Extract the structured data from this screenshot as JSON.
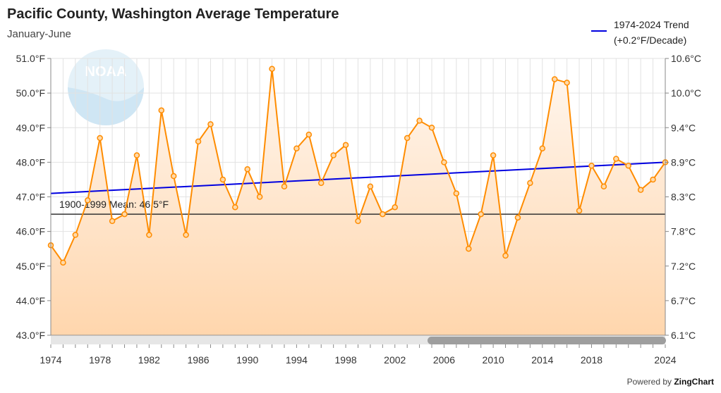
{
  "header": {
    "title": "Pacific County, Washington Average Temperature",
    "subtitle": "January-June"
  },
  "legend": {
    "line1": "1974-2024 Trend",
    "line2": "(+0.2°F/Decade)",
    "color": "#0000e0"
  },
  "footer": {
    "powered_prefix": "Powered by ",
    "powered_brand": "ZingChart"
  },
  "chart_data": {
    "type": "area",
    "x_start": 1974,
    "x_end": 2024,
    "x_ticks": [
      "1974",
      "1978",
      "1982",
      "1986",
      "1990",
      "1994",
      "1998",
      "2002",
      "2006",
      "2010",
      "2014",
      "2018",
      "2024"
    ],
    "x_tick_years": [
      1974,
      1978,
      1982,
      1986,
      1990,
      1994,
      1998,
      2002,
      2006,
      2010,
      2014,
      2018,
      2024
    ],
    "ylim": [
      43,
      51
    ],
    "y_ticks_left": [
      "43.0°F",
      "44.0°F",
      "45.0°F",
      "46.0°F",
      "47.0°F",
      "48.0°F",
      "49.0°F",
      "50.0°F",
      "51.0°F"
    ],
    "y_ticks_right": [
      "6.1°C",
      "6.7°C",
      "7.2°C",
      "7.8°C",
      "8.3°C",
      "8.9°C",
      "9.4°C",
      "10.0°C",
      "10.6°C"
    ],
    "series": [
      {
        "values": [
          45.6,
          45.1,
          45.9,
          46.9,
          48.7,
          46.3,
          46.5,
          48.2,
          45.9,
          49.5,
          47.6,
          45.9,
          48.6,
          49.1,
          47.5,
          46.7,
          47.8,
          47.0,
          50.7,
          47.3,
          48.4,
          48.8,
          47.4,
          48.2,
          48.5,
          46.3,
          47.3,
          46.5,
          46.7,
          48.7,
          49.2,
          49.0,
          48.0,
          47.1,
          45.5,
          46.5,
          48.2,
          45.3,
          46.4,
          47.4,
          48.4,
          50.4,
          50.3,
          46.6,
          47.9,
          47.3,
          48.1,
          47.9,
          47.2,
          47.5,
          48.0
        ],
        "color": "#ff8c00"
      }
    ],
    "trend": {
      "start_year": 1974,
      "end_year": 2024,
      "start_value": 47.1,
      "end_value": 48.0,
      "color": "#0000e0"
    },
    "mean_line": {
      "label": "1900-1999 Mean: 46.5°F",
      "value": 46.5
    },
    "grid": true
  }
}
